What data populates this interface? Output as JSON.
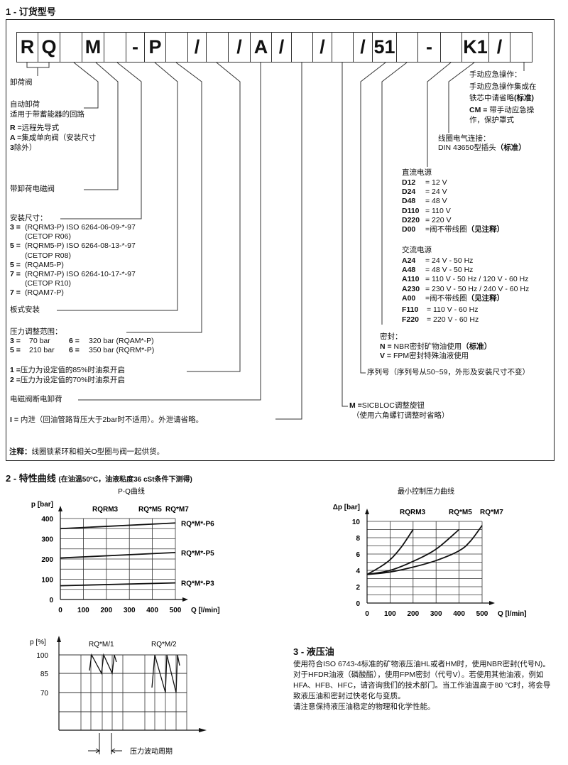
{
  "section1": {
    "heading": "1 - 订货型号",
    "code_cells": [
      "R",
      "Q",
      "",
      "M",
      "",
      "-",
      "P",
      "",
      "/",
      "",
      "/",
      "A",
      "/",
      "",
      "/",
      "",
      "/",
      "51",
      "",
      "-",
      "",
      "K1",
      "/",
      ""
    ],
    "left": {
      "unloading_valve": "卸荷阀",
      "auto_unload": "自动卸荷",
      "accumulator": "适用于带蓄能器的回路",
      "r_code": "R =",
      "r_text": "远程先导式",
      "a_code": "A =",
      "a_text": "集成单向阀（安装尺寸",
      "a_text2_code": "3",
      "a_text2": "除外）",
      "solenoid": "带卸荷电磁阀",
      "size_label": "安装尺寸：",
      "sizes": [
        {
          "code": "3 =",
          "text": "(RQRM3-P) ISO 6264-06-09-*-97"
        },
        {
          "code": "",
          "text": "(CETOP R06)"
        },
        {
          "code": "5 =",
          "text": "(RQRM5-P) ISO 6264-08-13-*-97"
        },
        {
          "code": "",
          "text": "(CETOP R08)"
        },
        {
          "code": "5 =",
          "text": "(RQAM5-P)"
        },
        {
          "code": "7 =",
          "text": "(RQRM7-P) ISO 6264-10-17-*-97"
        },
        {
          "code": "",
          "text": "(CETOP R10)"
        },
        {
          "code": "7 =",
          "text": "(RQAM7-P)"
        }
      ],
      "plate": "板式安装",
      "pressure_label": "压力调整范围：",
      "pressures": [
        {
          "c1": "3 =",
          "v1": "70 bar",
          "c2": "6 =",
          "v2": "320 bar (RQAM*-P)"
        },
        {
          "c1": "5 =",
          "v1": "210 bar",
          "c2": "6 =",
          "v2": "350 bar (RQRM*-P)"
        }
      ],
      "restart": [
        {
          "code": "1 =",
          "text": "压力为设定值的85%时油泵开启"
        },
        {
          "code": "2 =",
          "text": "压力为设定值的70%时油泵开启"
        }
      ],
      "deenergized": "电磁阀断电卸荷",
      "drain_code": "I =",
      "drain_text": " 内泄（回油管路背压大于2bar时不适用）。外泄请省略。",
      "note_label": "注释：",
      "note_text": "线圈锁紧环和相关O型圈与阀一起供货。"
    },
    "right": {
      "manual_title": "手动应急操作：",
      "manual_l1": "手动应急操作集成在",
      "manual_l2": "铁芯中请省略",
      "manual_std": "(标准)",
      "cm_code": "CM =",
      "cm_text": " 带手动应急操",
      "cm_text2": "作，保护罩式",
      "coil_title": "线圈电气连接：",
      "coil_text": "DIN 43650型插头",
      "coil_std": "（标准）",
      "dc_title": "直流电源",
      "dc": [
        {
          "code": "D12",
          "text": "= 12 V"
        },
        {
          "code": "D24",
          "text": "= 24 V"
        },
        {
          "code": "D48",
          "text": "= 48 V"
        },
        {
          "code": "D110",
          "text": "= 110 V"
        },
        {
          "code": "D220",
          "text": "= 220 V"
        },
        {
          "code": "D00",
          "text": "=阀不带线圈",
          "note": "（见注释）"
        }
      ],
      "ac_title": "交流电源",
      "ac": [
        {
          "code": "A24",
          "text": "=   24 V - 50 Hz"
        },
        {
          "code": "A48",
          "text": "=   48 V - 50 Hz"
        },
        {
          "code": "A110",
          "text": "= 110 V - 50 Hz / 120 V - 60 Hz"
        },
        {
          "code": "A230",
          "text": "= 230 V - 50 Hz / 240 V - 60 Hz"
        },
        {
          "code": "A00",
          "text": "=阀不带线圈",
          "note": "（见注释）"
        }
      ],
      "f": [
        {
          "code": "F110",
          "text": "= 110 V - 60 Hz"
        },
        {
          "code": "F220",
          "text": "= 220 V - 60 Hz"
        }
      ],
      "seal_title": "密封：",
      "seal_n_code": "N =",
      "seal_n_text": " NBR密封矿物油使用",
      "seal_n_std": "（标准）",
      "seal_v_code": "V =",
      "seal_v_text": " FPM密封特殊油液使用",
      "serial": "序列号（序列号从50~59，外形及安装尺寸不变）",
      "m_code": "M =",
      "m_text": "SICBLOC调整旋钮",
      "m_text2": "（使用六角螺钉调整时省略）"
    }
  },
  "section2": {
    "heading": "2 - 特性曲线",
    "heading_note": "(在油温50°C，油液粘度36 cSt条件下测得)"
  },
  "chart_data": [
    {
      "type": "line",
      "title": "P-Q曲线",
      "xlabel": "Q [l/min]",
      "ylabel": "p [bar]",
      "xlim": [
        0,
        500
      ],
      "ylim": [
        0,
        400
      ],
      "xticks": [
        0,
        100,
        200,
        300,
        400,
        500
      ],
      "yticks": [
        0,
        100,
        200,
        300,
        400
      ],
      "grid": true,
      "top_labels": [
        "RQRM3",
        "RQ*M5",
        "RQ*M7"
      ],
      "series": [
        {
          "name": "RQ*M*-P6",
          "x": [
            0,
            500
          ],
          "y": [
            350,
            378
          ]
        },
        {
          "name": "RQ*M*-P5",
          "x": [
            0,
            500
          ],
          "y": [
            205,
            232
          ]
        },
        {
          "name": "RQ*M*-P3",
          "x": [
            0,
            500
          ],
          "y": [
            68,
            82
          ]
        }
      ]
    },
    {
      "type": "line",
      "title": "最小控制压力曲线",
      "xlabel": "Q [l/min]",
      "ylabel": "Δp [bar]",
      "xlim": [
        0,
        500
      ],
      "ylim": [
        0,
        10
      ],
      "xticks": [
        0,
        100,
        200,
        300,
        400,
        500
      ],
      "yticks": [
        0,
        2,
        4,
        6,
        8,
        10
      ],
      "grid": true,
      "series": [
        {
          "name": "RQRM3",
          "x": [
            0,
            50,
            100,
            150,
            200
          ],
          "y": [
            3.5,
            4.3,
            5.3,
            6.9,
            9.0
          ]
        },
        {
          "name": "RQ*M5",
          "x": [
            0,
            100,
            200,
            300,
            400
          ],
          "y": [
            3.5,
            4.0,
            5.1,
            6.6,
            9.0
          ]
        },
        {
          "name": "RQ*M7",
          "x": [
            0,
            100,
            200,
            300,
            400,
            450,
            500
          ],
          "y": [
            3.5,
            3.8,
            4.4,
            5.2,
            6.4,
            7.6,
            9.5
          ]
        }
      ]
    },
    {
      "type": "line",
      "ylabel": "p [%]",
      "yticks": [
        100,
        85,
        70
      ],
      "grid": true,
      "series_labels": [
        "RQ*M/1",
        "RQ*M/2"
      ],
      "period_label": "压力波动周期"
    }
  ],
  "section3": {
    "heading": "3 - 液压油",
    "para1": "使用符合ISO 6743-4标准的矿物液压油HL或者HM时，使用NBR密封(代号N)。对于HFDR油液（磷酸酯），使用FPM密封（代号V）。若使用其他油液，例如HFA、HFB、HFC，请咨询我们的技术部门。当工作油温高于80 °C时，将会导致液压油和密封过快老化与变质。",
    "para2": "请注意保持液压油稳定的物理和化学性能。"
  }
}
